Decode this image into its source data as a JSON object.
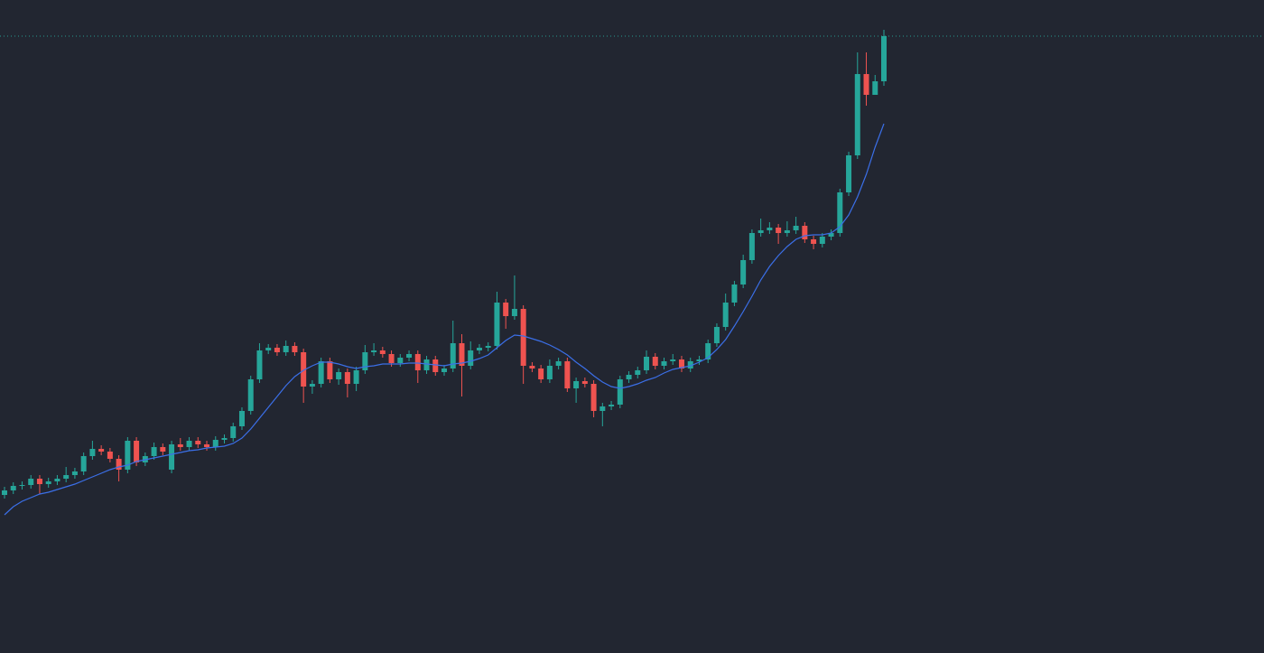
{
  "chart_data": {
    "type": "candlestick",
    "ylim": [
      0,
      723
    ],
    "series": [
      {
        "type": "candlestick",
        "up_color": "#26a69a",
        "down_color": "#ef5350",
        "open": [
          175,
          180,
          185,
          186,
          193,
          187,
          190,
          193,
          197,
          201,
          218,
          226,
          223,
          215,
          203,
          235,
          211,
          218,
          228,
          203,
          231,
          228,
          235,
          231,
          228,
          236,
          238,
          251,
          268,
          303,
          335,
          338,
          333,
          340,
          333,
          295,
          298,
          323,
          303,
          311,
          298,
          313,
          333,
          335,
          331,
          321,
          327,
          331,
          313,
          325,
          311,
          315,
          343,
          318,
          335,
          338,
          340,
          388,
          373,
          381,
          318,
          315,
          303,
          318,
          323,
          293,
          301,
          298,
          268,
          273,
          275,
          303,
          308,
          313,
          328,
          318,
          323,
          325,
          315,
          323,
          325,
          343,
          361,
          388,
          408,
          435,
          465,
          468,
          471,
          465,
          468,
          473,
          458,
          453,
          461,
          465,
          510,
          551,
          641,
          618,
          633
        ],
        "high": [
          184,
          189,
          190,
          197,
          197,
          194,
          197,
          206,
          205,
          222,
          235,
          230,
          227,
          219,
          239,
          239,
          222,
          233,
          232,
          235,
          238,
          239,
          239,
          235,
          240,
          242,
          255,
          272,
          307,
          343,
          342,
          342,
          346,
          344,
          337,
          302,
          327,
          327,
          315,
          315,
          317,
          341,
          343,
          339,
          335,
          331,
          335,
          335,
          329,
          329,
          319,
          368,
          353,
          345,
          342,
          344,
          400,
          392,
          418,
          385,
          322,
          319,
          325,
          327,
          327,
          305,
          305,
          302,
          277,
          279,
          307,
          312,
          317,
          335,
          332,
          327,
          331,
          329,
          327,
          329,
          347,
          365,
          398,
          412,
          441,
          469,
          481,
          477,
          475,
          478,
          483,
          477,
          462,
          465,
          469,
          514,
          555,
          665,
          665,
          640,
          690
        ],
        "low": [
          171,
          176,
          181,
          182,
          176,
          183,
          186,
          189,
          193,
          197,
          214,
          219,
          211,
          190,
          199,
          207,
          207,
          214,
          219,
          199,
          224,
          224,
          227,
          224,
          224,
          232,
          234,
          247,
          264,
          299,
          331,
          329,
          329,
          329,
          277,
          287,
          294,
          299,
          297,
          283,
          290,
          309,
          329,
          327,
          317,
          317,
          323,
          299,
          309,
          307,
          307,
          311,
          284,
          314,
          331,
          334,
          336,
          359,
          369,
          298,
          311,
          299,
          299,
          314,
          289,
          277,
          294,
          261,
          251,
          269,
          271,
          299,
          304,
          309,
          314,
          314,
          319,
          311,
          311,
          319,
          321,
          339,
          357,
          384,
          404,
          431,
          461,
          464,
          453,
          461,
          464,
          454,
          447,
          449,
          457,
          461,
          506,
          547,
          606,
          622,
          628
        ],
        "close": [
          180,
          185,
          186,
          193,
          187,
          190,
          193,
          197,
          201,
          218,
          226,
          223,
          215,
          203,
          235,
          211,
          218,
          228,
          223,
          231,
          228,
          235,
          231,
          228,
          236,
          238,
          251,
          268,
          303,
          335,
          338,
          333,
          340,
          333,
          295,
          298,
          323,
          303,
          311,
          298,
          313,
          333,
          335,
          331,
          321,
          327,
          331,
          313,
          325,
          311,
          315,
          343,
          318,
          335,
          338,
          340,
          388,
          373,
          381,
          318,
          315,
          303,
          318,
          323,
          293,
          301,
          298,
          268,
          273,
          275,
          303,
          308,
          313,
          328,
          318,
          323,
          325,
          315,
          323,
          325,
          343,
          361,
          388,
          408,
          435,
          465,
          468,
          471,
          465,
          468,
          473,
          458,
          453,
          461,
          465,
          510,
          551,
          641,
          618,
          633,
          683
        ]
      },
      {
        "type": "line",
        "color": "#3b6fe8",
        "values": [
          153,
          162,
          168,
          172,
          176,
          178,
          181,
          184,
          187,
          191,
          195,
          199,
          203,
          206,
          208,
          212,
          214,
          216,
          218,
          220,
          222,
          224,
          225,
          227,
          228,
          229,
          232,
          238,
          248,
          260,
          272,
          284,
          296,
          306,
          313,
          318,
          322,
          322,
          320,
          317,
          315,
          317,
          318,
          320,
          320,
          320,
          321,
          321,
          320,
          319,
          318,
          320,
          321,
          323,
          326,
          330,
          338,
          346,
          352,
          351,
          348,
          345,
          341,
          336,
          330,
          322,
          315,
          307,
          300,
          295,
          293,
          295,
          298,
          302,
          305,
          310,
          314,
          316,
          318,
          322,
          327,
          336,
          347,
          362,
          378,
          395,
          413,
          428,
          440,
          450,
          458,
          462,
          463,
          463,
          465,
          472,
          485,
          505,
          530,
          560,
          586
        ]
      }
    ],
    "price_line_color": "#26a69a"
  }
}
